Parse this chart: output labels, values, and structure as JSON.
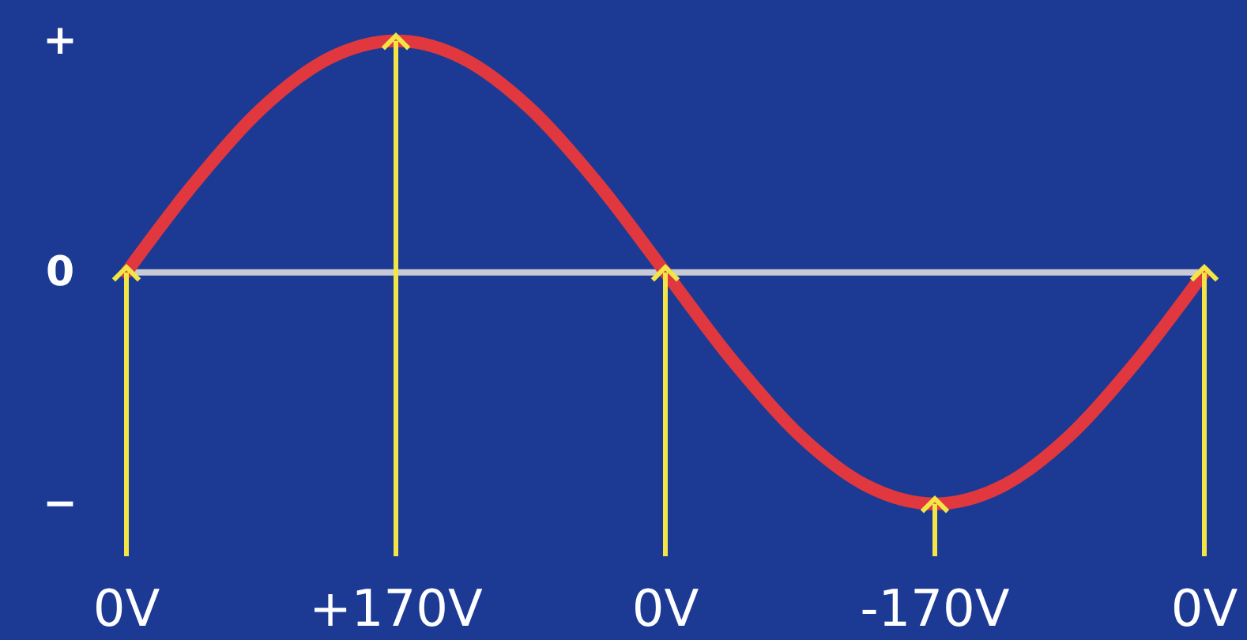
{
  "chart_data": {
    "type": "line",
    "categories": [
      null,
      null,
      null,
      null,
      null,
      null,
      null,
      null,
      null,
      null,
      null,
      null,
      null,
      null,
      null,
      null,
      null
    ],
    "series": [
      {
        "color": "#e0383e",
        "values": [
          0,
          65,
          120,
          157,
          170,
          157,
          120,
          65,
          0,
          -65,
          -120,
          -157,
          -170,
          -157,
          -120,
          -65,
          0
        ],
        "value_labels": [
          "0V",
          null,
          null,
          null,
          "+170V",
          null,
          null,
          null,
          "0V",
          null,
          null,
          null,
          "-170V",
          null,
          null,
          null,
          "0V"
        ]
      }
    ],
    "ylim": [
      -270,
      200
    ],
    "tick_labels": false,
    "annotations": [
      "+",
      "0",
      "−"
    ],
    "ref_lines": [
      {
        "axis": "y",
        "value": 0,
        "color": "#c8cad6"
      }
    ]
  }
}
